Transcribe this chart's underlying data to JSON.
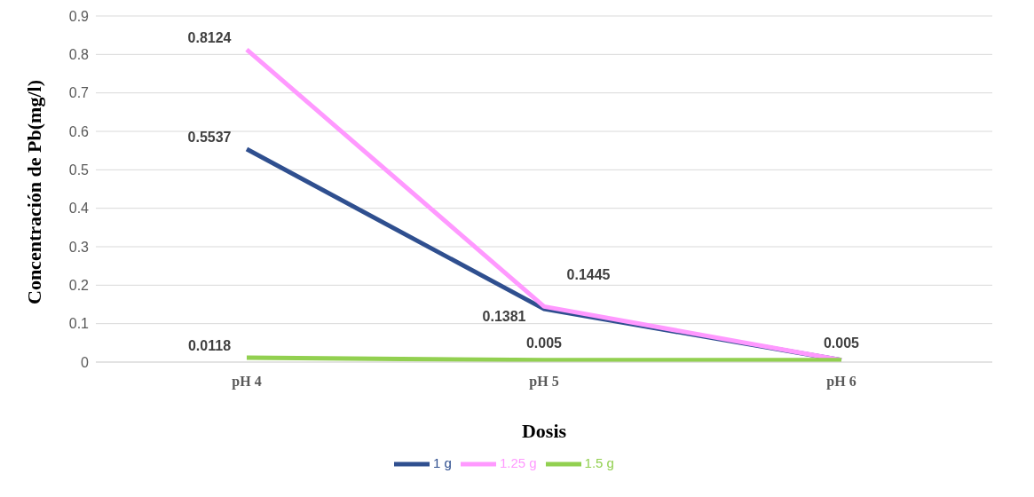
{
  "chart_data": {
    "type": "line",
    "xlabel": "Dosis",
    "ylabel": "Concentración de Pb(mg/l)",
    "categories": [
      "pH 4",
      "pH 5",
      "pH 6"
    ],
    "series": [
      {
        "name": "1 g",
        "color": "#2f4f8f",
        "values": [
          0.5537,
          0.1381,
          0.005
        ],
        "value_labels": [
          "0.5537",
          "0.1381",
          null
        ]
      },
      {
        "name": "1.25 g",
        "color": "#ff99ff",
        "values": [
          0.8124,
          0.1445,
          0.005
        ],
        "value_labels": [
          "0.8124",
          "0.1445",
          null
        ]
      },
      {
        "name": "1.5 g",
        "color": "#92d050",
        "values": [
          0.0118,
          0.005,
          0.005
        ],
        "value_labels": [
          "0.0118",
          "0.005",
          "0.005"
        ]
      }
    ],
    "ylim": [
      0,
      0.9
    ],
    "yticks": [
      0,
      0.1,
      0.2,
      0.3,
      0.4,
      0.5,
      0.6,
      0.7,
      0.8,
      0.9
    ],
    "grid": "y",
    "legend": "bottom",
    "marker": "none",
    "line_style": "solid"
  }
}
